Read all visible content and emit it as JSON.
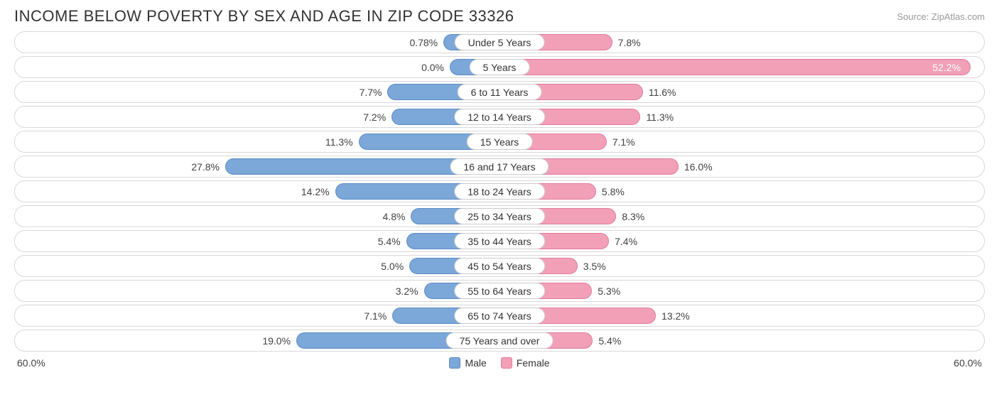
{
  "title": "INCOME BELOW POVERTY BY SEX AND AGE IN ZIP CODE 33326",
  "source": "Source: ZipAtlas.com",
  "axis_max": 60.0,
  "axis_label_left": "60.0%",
  "axis_label_right": "60.0%",
  "colors": {
    "male_fill": "#7ba7d9",
    "male_border": "#5b8bc4",
    "female_fill": "#f2a0b8",
    "female_border": "#e27a9a",
    "track_border": "#d8d8d8",
    "pill_border": "#cccccc",
    "text": "#424242",
    "background": "#ffffff"
  },
  "legend": {
    "male": "Male",
    "female": "Female"
  },
  "rows": [
    {
      "category": "Under 5 Years",
      "male": 0.78,
      "male_label": "0.78%",
      "female": 7.8,
      "female_label": "7.8%"
    },
    {
      "category": "5 Years",
      "male": 0.0,
      "male_label": "0.0%",
      "female": 52.2,
      "female_label": "52.2%",
      "female_inside": true
    },
    {
      "category": "6 to 11 Years",
      "male": 7.7,
      "male_label": "7.7%",
      "female": 11.6,
      "female_label": "11.6%"
    },
    {
      "category": "12 to 14 Years",
      "male": 7.2,
      "male_label": "7.2%",
      "female": 11.3,
      "female_label": "11.3%"
    },
    {
      "category": "15 Years",
      "male": 11.3,
      "male_label": "11.3%",
      "female": 7.1,
      "female_label": "7.1%"
    },
    {
      "category": "16 and 17 Years",
      "male": 27.8,
      "male_label": "27.8%",
      "female": 16.0,
      "female_label": "16.0%"
    },
    {
      "category": "18 to 24 Years",
      "male": 14.2,
      "male_label": "14.2%",
      "female": 5.8,
      "female_label": "5.8%"
    },
    {
      "category": "25 to 34 Years",
      "male": 4.8,
      "male_label": "4.8%",
      "female": 8.3,
      "female_label": "8.3%"
    },
    {
      "category": "35 to 44 Years",
      "male": 5.4,
      "male_label": "5.4%",
      "female": 7.4,
      "female_label": "7.4%"
    },
    {
      "category": "45 to 54 Years",
      "male": 5.0,
      "male_label": "5.0%",
      "female": 3.5,
      "female_label": "3.5%"
    },
    {
      "category": "55 to 64 Years",
      "male": 3.2,
      "male_label": "3.2%",
      "female": 5.3,
      "female_label": "5.3%"
    },
    {
      "category": "65 to 74 Years",
      "male": 7.1,
      "male_label": "7.1%",
      "female": 13.2,
      "female_label": "13.2%"
    },
    {
      "category": "75 Years and over",
      "male": 19.0,
      "male_label": "19.0%",
      "female": 5.4,
      "female_label": "5.4%"
    }
  ]
}
